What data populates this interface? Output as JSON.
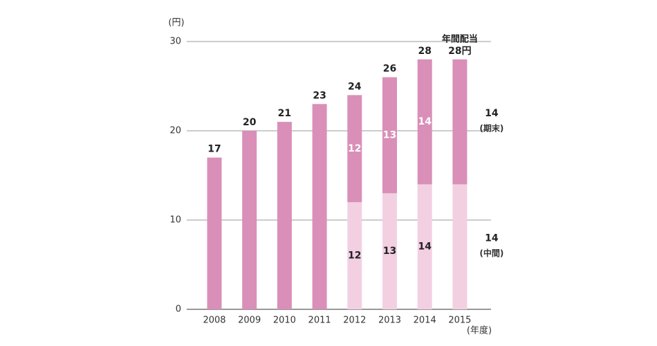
{
  "chart_data": {
    "type": "stacked_bar",
    "y_label": "(円)",
    "x_label": "(年度)",
    "categories": [
      "2008",
      "2009",
      "2010",
      "2011",
      "2012",
      "2013",
      "2014",
      "2015"
    ],
    "series": [
      {
        "name": "(中間)",
        "color": "#f2d0e2",
        "values": [
          null,
          null,
          null,
          null,
          12,
          13,
          14,
          14
        ]
      },
      {
        "name": "(期末)",
        "color": "#d98fb8",
        "values": [
          17,
          20,
          21,
          23,
          12,
          13,
          14,
          14
        ]
      }
    ],
    "totals": [
      17,
      20,
      21,
      23,
      24,
      26,
      28,
      28
    ],
    "value_labels": [
      "17",
      "20",
      "21",
      "23",
      "24",
      "26",
      "28",
      "28円"
    ],
    "annotation": "年間配当",
    "ylim": [
      0,
      30
    ],
    "yticks": [
      0,
      10,
      20,
      30
    ],
    "grid": true
  }
}
